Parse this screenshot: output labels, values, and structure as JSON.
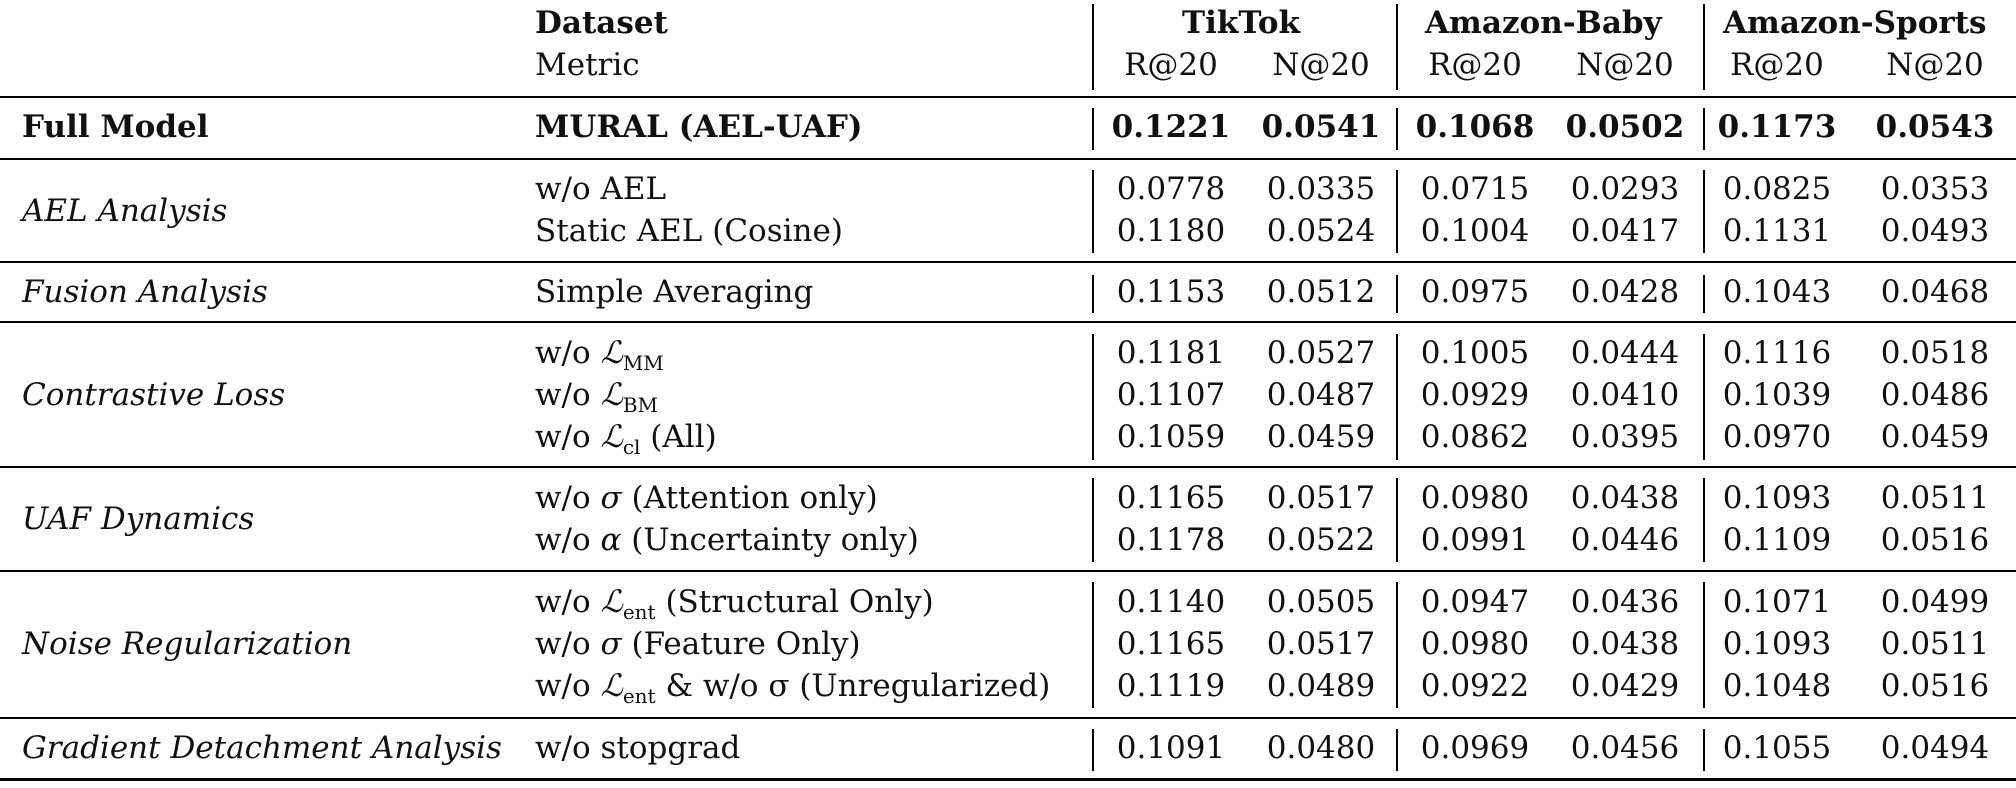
{
  "header": {
    "dataset_label": "Dataset",
    "metric_label": "Metric",
    "datasets": [
      "TikTok",
      "Amazon-Baby",
      "Amazon-Sports"
    ],
    "metrics": [
      "R@20",
      "N@20",
      "R@20",
      "N@20",
      "R@20",
      "N@20"
    ]
  },
  "groups": [
    {
      "name": "Full Model",
      "rows": [
        {
          "variant": "MURAL (AEL-UAF)",
          "values": [
            "0.1221",
            "0.0541",
            "0.1068",
            "0.0502",
            "0.1173",
            "0.0543"
          ]
        }
      ]
    },
    {
      "name": "AEL Analysis",
      "rows": [
        {
          "variant": "w/o AEL",
          "values": [
            "0.0778",
            "0.0335",
            "0.0715",
            "0.0293",
            "0.0825",
            "0.0353"
          ]
        },
        {
          "variant": "Static AEL (Cosine)",
          "values": [
            "0.1180",
            "0.0524",
            "0.1004",
            "0.0417",
            "0.1131",
            "0.0493"
          ]
        }
      ]
    },
    {
      "name": "Fusion Analysis",
      "rows": [
        {
          "variant": "Simple Averaging",
          "values": [
            "0.1153",
            "0.0512",
            "0.0975",
            "0.0428",
            "0.1043",
            "0.0468"
          ]
        }
      ]
    },
    {
      "name": "Contrastive Loss",
      "rows": [
        {
          "variant_pre": "w/o ",
          "symbol": "ℒ",
          "subscript": "MM",
          "variant_post": "",
          "values": [
            "0.1181",
            "0.0527",
            "0.1005",
            "0.0444",
            "0.1116",
            "0.0518"
          ]
        },
        {
          "variant_pre": "w/o ",
          "symbol": "ℒ",
          "subscript": "BM",
          "variant_post": "",
          "values": [
            "0.1107",
            "0.0487",
            "0.0929",
            "0.0410",
            "0.1039",
            "0.0486"
          ]
        },
        {
          "variant_pre": "w/o ",
          "symbol": "ℒ",
          "subscript": "cl",
          "variant_post": " (All)",
          "values": [
            "0.1059",
            "0.0459",
            "0.0862",
            "0.0395",
            "0.0970",
            "0.0459"
          ]
        }
      ]
    },
    {
      "name": "UAF Dynamics",
      "rows": [
        {
          "variant_pre": "w/o ",
          "symbol": "σ",
          "variant_post": " (Attention only)",
          "values": [
            "0.1165",
            "0.0517",
            "0.0980",
            "0.0438",
            "0.1093",
            "0.0511"
          ]
        },
        {
          "variant_pre": "w/o ",
          "symbol": "α",
          "variant_post": " (Uncertainty only)",
          "values": [
            "0.1178",
            "0.0522",
            "0.0991",
            "0.0446",
            "0.1109",
            "0.0516"
          ]
        }
      ]
    },
    {
      "name": "Noise Regularization",
      "rows": [
        {
          "variant_pre": "w/o ",
          "symbol": "ℒ",
          "subscript": "ent",
          "variant_post": " (Structural Only)",
          "values": [
            "0.1140",
            "0.0505",
            "0.0947",
            "0.0436",
            "0.1071",
            "0.0499"
          ]
        },
        {
          "variant_pre": "w/o ",
          "symbol": "σ",
          "variant_post": " (Feature Only)",
          "values": [
            "0.1165",
            "0.0517",
            "0.0980",
            "0.0438",
            "0.1093",
            "0.0511"
          ]
        },
        {
          "variant_pre": "w/o ",
          "symbol": "ℒ",
          "subscript": "ent",
          "variant_post": " & w/o σ (Unregularized)",
          "values": [
            "0.1119",
            "0.0489",
            "0.0922",
            "0.0429",
            "0.1048",
            "0.0516"
          ]
        }
      ]
    },
    {
      "name": "Gradient Detachment Analysis",
      "rows": [
        {
          "variant": "w/o stopgrad",
          "values": [
            "0.1091",
            "0.0480",
            "0.0969",
            "0.0456",
            "0.1055",
            "0.0494"
          ]
        }
      ]
    }
  ]
}
